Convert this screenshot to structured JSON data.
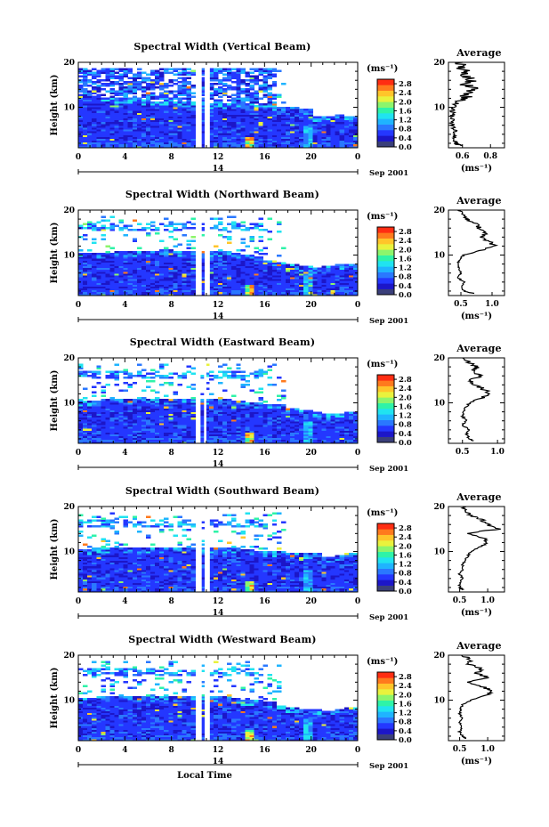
{
  "chart_data": [
    {
      "type": "heatmap",
      "title": "Spectral Width (Vertical Beam)",
      "xlabel": "",
      "ylabel": "Height (km)",
      "xticks": [
        "0",
        "4",
        "8",
        "12",
        "16",
        "20",
        "0"
      ],
      "xlim": [
        0,
        24
      ],
      "yticks": [
        "10",
        "20"
      ],
      "ylim": [
        1,
        20
      ],
      "date_day": "14",
      "date_label": "Sep 2001",
      "colorbar": {
        "unit": "(ms⁻¹)",
        "ticks": [
          "0.0",
          "0.4",
          "0.8",
          "1.2",
          "1.6",
          "2.0",
          "2.4",
          "2.8"
        ],
        "range": [
          0,
          3.0
        ]
      },
      "cloud_top_km": [
        12.5,
        12.3,
        12.0,
        12.0,
        11.8,
        11.8,
        11.5,
        11.5,
        11.3,
        11.2,
        11.0,
        10.8,
        10.8,
        11.0,
        10.8,
        10.5,
        10.5,
        10.2,
        10.0,
        9.8,
        8.0,
        8.2,
        8.5,
        8.0
      ],
      "gap_hours": [
        [
          10.2,
          10.6
        ],
        [
          10.9,
          11.3
        ]
      ],
      "average": {
        "title": "Average",
        "xlabel": "(ms⁻¹)",
        "xticks": [
          "0.6",
          "0.8"
        ],
        "xlim": [
          0.5,
          0.9
        ],
        "height_km": [
          1.5,
          2,
          3,
          4,
          5,
          6,
          7,
          8,
          9,
          10,
          11,
          12,
          13,
          14,
          15,
          16,
          17,
          18,
          19,
          20
        ],
        "value": [
          0.58,
          0.55,
          0.54,
          0.55,
          0.54,
          0.53,
          0.53,
          0.53,
          0.53,
          0.54,
          0.56,
          0.62,
          0.64,
          0.68,
          0.63,
          0.67,
          0.61,
          0.62,
          0.56,
          0.6
        ]
      }
    },
    {
      "type": "heatmap",
      "title": "Spectral Width (Northward Beam)",
      "xlabel": "",
      "ylabel": "Height (km)",
      "xticks": [
        "0",
        "4",
        "8",
        "12",
        "16",
        "20",
        "0"
      ],
      "xlim": [
        0,
        24
      ],
      "yticks": [
        "10",
        "20"
      ],
      "ylim": [
        1,
        20
      ],
      "date_day": "14",
      "date_label": "Sep 2001",
      "colorbar": {
        "unit": "(ms⁻¹)",
        "ticks": [
          "0.0",
          "0.4",
          "0.8",
          "1.2",
          "1.6",
          "2.0",
          "2.4",
          "2.8"
        ],
        "range": [
          0,
          3.0
        ]
      },
      "cloud_top_km": [
        10.5,
        10.5,
        10.5,
        10.8,
        11.0,
        11.0,
        11.0,
        11.2,
        11.0,
        11.0,
        11.0,
        11.0,
        10.8,
        10.5,
        10.0,
        9.5,
        9.0,
        8.5,
        8.0,
        7.5,
        7.0,
        7.5,
        8.0,
        8.0
      ],
      "gap_hours": [
        [
          10.2,
          10.6
        ],
        [
          10.9,
          11.3
        ]
      ],
      "average": {
        "title": "Average",
        "xlabel": "(ms⁻¹)",
        "xticks": [
          "0.5",
          "1.0"
        ],
        "xlim": [
          0.3,
          1.2
        ],
        "height_km": [
          1.5,
          2,
          3,
          4,
          5,
          6,
          7,
          8,
          9,
          10,
          11,
          12,
          13,
          14,
          15,
          16,
          17,
          18,
          19,
          20
        ],
        "value": [
          0.7,
          0.55,
          0.5,
          0.55,
          0.45,
          0.5,
          0.48,
          0.46,
          0.47,
          0.55,
          0.8,
          1.05,
          0.95,
          0.85,
          0.9,
          0.8,
          0.75,
          0.6,
          0.55,
          0.5
        ]
      }
    },
    {
      "type": "heatmap",
      "title": "Spectral Width (Eastward Beam)",
      "xlabel": "",
      "ylabel": "Height (km)",
      "xticks": [
        "0",
        "4",
        "8",
        "12",
        "16",
        "20",
        "0"
      ],
      "xlim": [
        0,
        24
      ],
      "yticks": [
        "10",
        "20"
      ],
      "ylim": [
        1,
        20
      ],
      "date_day": "14",
      "date_label": "Sep 2001",
      "colorbar": {
        "unit": "(ms⁻¹)",
        "ticks": [
          "0.0",
          "0.4",
          "0.8",
          "1.2",
          "1.6",
          "2.0",
          "2.4",
          "2.8"
        ],
        "range": [
          0,
          3.0
        ]
      },
      "cloud_top_km": [
        10.5,
        10.5,
        10.8,
        11.0,
        11.0,
        11.2,
        11.0,
        11.0,
        11.0,
        11.0,
        11.0,
        11.0,
        10.8,
        10.5,
        10.2,
        10.0,
        9.8,
        9.5,
        9.0,
        8.5,
        8.0,
        7.5,
        7.8,
        8.0
      ],
      "gap_hours": [
        [
          10.2,
          10.5
        ],
        [
          10.8,
          11.0
        ]
      ],
      "average": {
        "title": "Average",
        "xlabel": "",
        "xticks": [
          "0.5",
          "1.0"
        ],
        "xlim": [
          0.3,
          1.1
        ],
        "height_km": [
          1.5,
          2,
          3,
          4,
          5,
          6,
          7,
          8,
          9,
          10,
          11,
          12,
          13,
          14,
          15,
          16,
          17,
          18,
          19,
          20
        ],
        "value": [
          0.65,
          0.6,
          0.55,
          0.6,
          0.5,
          0.55,
          0.5,
          0.52,
          0.55,
          0.6,
          0.75,
          0.9,
          0.8,
          0.7,
          0.6,
          0.75,
          0.65,
          0.7,
          0.6,
          0.5
        ]
      }
    },
    {
      "type": "heatmap",
      "title": "Spectral Width (Southward Beam)",
      "xlabel": "",
      "ylabel": "Height (km)",
      "xticks": [
        "0",
        "4",
        "8",
        "12",
        "16",
        "20",
        "0"
      ],
      "xlim": [
        0,
        24
      ],
      "yticks": [
        "10",
        "20"
      ],
      "ylim": [
        1,
        20
      ],
      "date_day": "14",
      "date_label": "Sep 2001",
      "colorbar": {
        "unit": "(ms⁻¹)",
        "ticks": [
          "0.0",
          "0.4",
          "0.8",
          "1.2",
          "1.6",
          "2.0",
          "2.4",
          "2.8"
        ],
        "range": [
          0,
          3.0
        ]
      },
      "cloud_top_km": [
        10.5,
        10.8,
        10.8,
        11.0,
        11.0,
        11.0,
        11.0,
        11.0,
        11.0,
        11.0,
        11.0,
        11.0,
        11.0,
        10.8,
        10.5,
        10.2,
        10.0,
        10.0,
        9.8,
        9.5,
        9.5,
        9.0,
        9.2,
        9.5
      ],
      "gap_hours": [
        [
          10.2,
          10.6
        ],
        [
          10.9,
          11.3
        ]
      ],
      "average": {
        "title": "Average",
        "xlabel": "(ms⁻¹)",
        "xticks": [
          "0.5",
          "1.0"
        ],
        "xlim": [
          0.3,
          1.3
        ],
        "height_km": [
          1.5,
          2,
          3,
          4,
          5,
          6,
          7,
          8,
          9,
          10,
          11,
          12,
          13,
          14,
          15,
          16,
          17,
          18,
          19,
          20
        ],
        "value": [
          0.55,
          0.5,
          0.5,
          0.55,
          0.5,
          0.55,
          0.55,
          0.6,
          0.65,
          0.7,
          0.85,
          1.0,
          0.95,
          0.6,
          1.2,
          1.0,
          0.9,
          0.7,
          0.6,
          0.55
        ]
      }
    },
    {
      "type": "heatmap",
      "title": "Spectral Width (Westward Beam)",
      "xlabel": "Local Time",
      "ylabel": "Height (km)",
      "xticks": [
        "0",
        "4",
        "8",
        "12",
        "16",
        "20",
        "0"
      ],
      "xlim": [
        0,
        24
      ],
      "yticks": [
        "10",
        "20"
      ],
      "ylim": [
        1,
        20
      ],
      "date_day": "14",
      "date_label": "Sep 2001",
      "colorbar": {
        "unit": "(ms⁻¹)",
        "ticks": [
          "0.0",
          "0.4",
          "0.8",
          "1.2",
          "1.6",
          "2.0",
          "2.4",
          "2.8"
        ],
        "range": [
          0,
          3.0
        ]
      },
      "cloud_top_km": [
        10.5,
        10.5,
        10.8,
        11.0,
        11.0,
        11.0,
        11.0,
        11.0,
        11.0,
        11.0,
        11.0,
        11.0,
        10.8,
        10.5,
        10.2,
        10.0,
        9.5,
        9.0,
        8.5,
        8.0,
        8.0,
        7.5,
        8.0,
        8.5
      ],
      "gap_hours": [
        [
          10.2,
          10.6
        ],
        [
          10.9,
          11.3
        ]
      ],
      "average": {
        "title": "Average",
        "xlabel": "(ms⁻¹)",
        "xticks": [
          "0.5",
          "1.0"
        ],
        "xlim": [
          0.3,
          1.3
        ],
        "height_km": [
          1.5,
          2,
          3,
          4,
          5,
          6,
          7,
          8,
          9,
          10,
          11,
          12,
          13,
          14,
          15,
          16,
          17,
          18,
          19,
          20
        ],
        "value": [
          0.6,
          0.55,
          0.5,
          0.55,
          0.5,
          0.55,
          0.5,
          0.52,
          0.55,
          0.7,
          0.95,
          1.1,
          0.9,
          0.65,
          1.0,
          0.8,
          0.9,
          0.65,
          0.7,
          0.55
        ]
      }
    }
  ],
  "colors": {
    "colormap": [
      "#3a3f7a",
      "#1c16c8",
      "#2437ff",
      "#2a78ff",
      "#1fb4ff",
      "#20e3f0",
      "#2ef3a8",
      "#8cf56c",
      "#e9f23d",
      "#ffc52a",
      "#ff7a1d",
      "#ff2d12"
    ],
    "profile_line": "#000000",
    "background": "#ffffff"
  }
}
